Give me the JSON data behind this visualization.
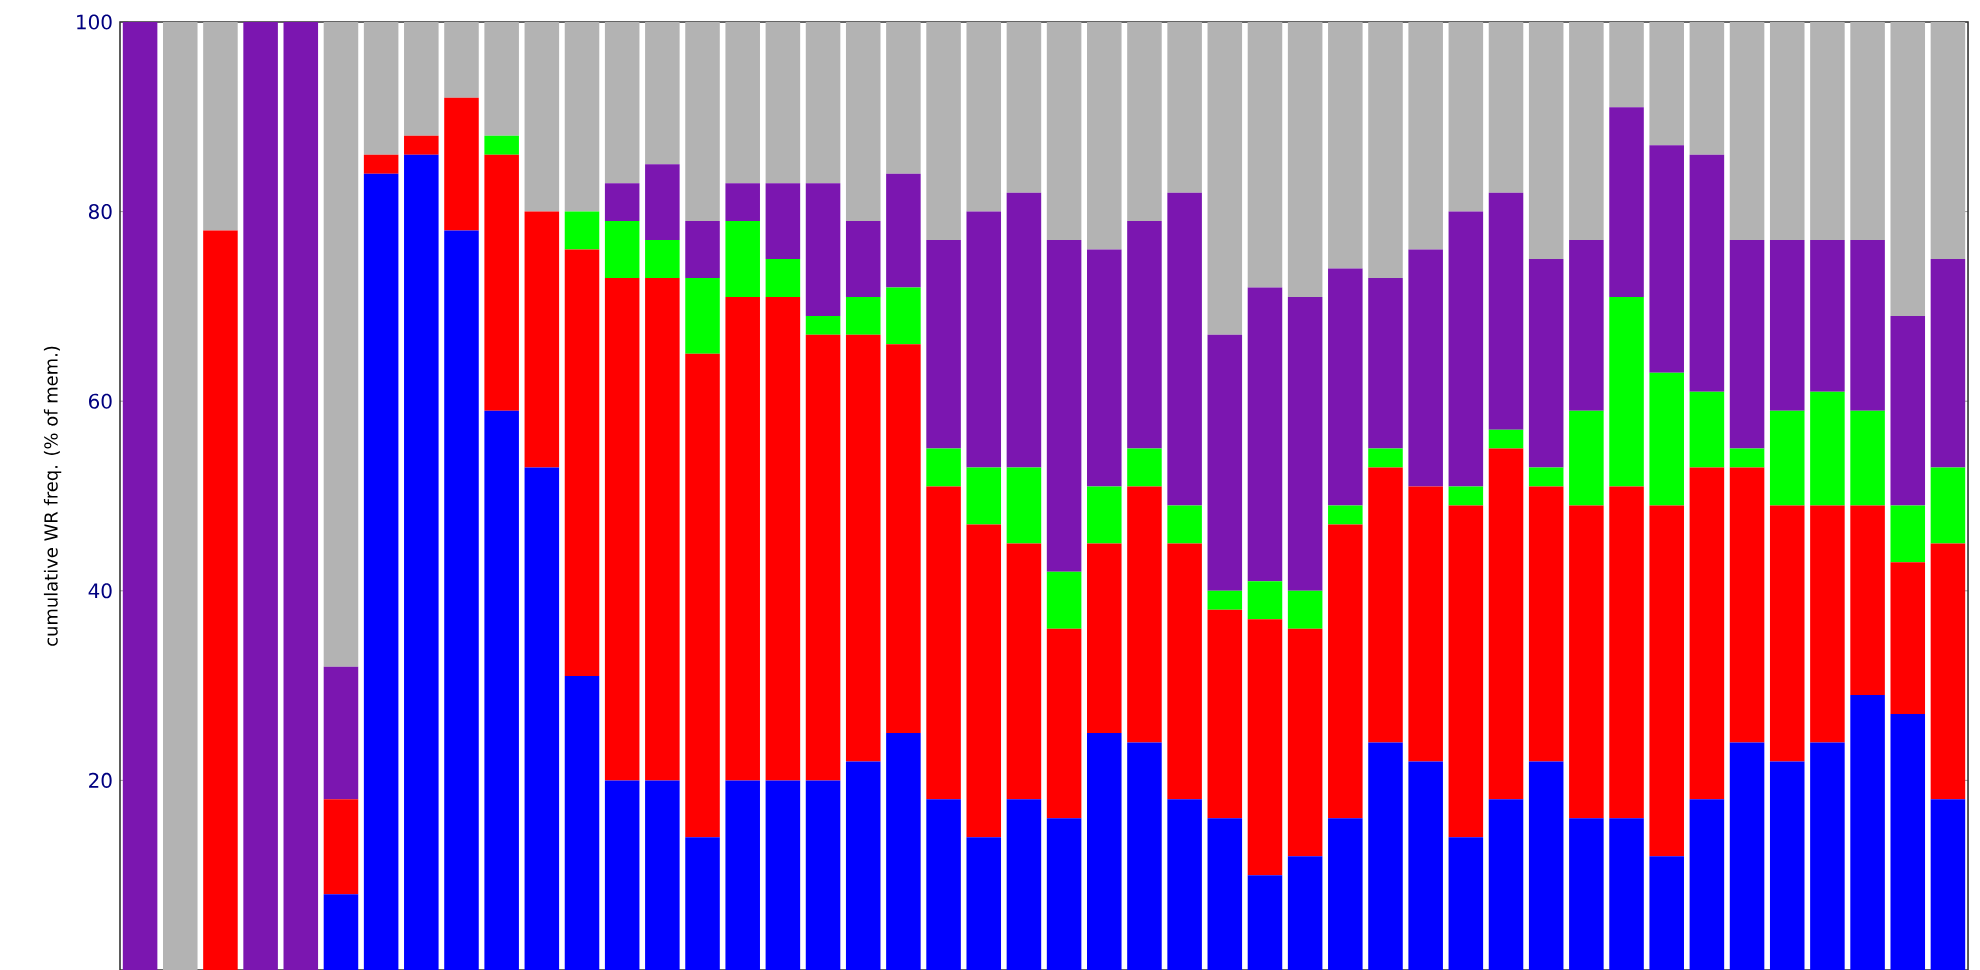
{
  "chart_data": {
    "type": "bar",
    "stacked": true,
    "ylabel": "cumulative WR freq. (% of mem.)",
    "categories": [
      null,
      null,
      null,
      null,
      null,
      null,
      null,
      null,
      null,
      null,
      null,
      null,
      null,
      null,
      null,
      null,
      null,
      null,
      null,
      null,
      null,
      null,
      null,
      null,
      null,
      null,
      null,
      null,
      null,
      null,
      null,
      null,
      null,
      null,
      null,
      null,
      null,
      null,
      null,
      null,
      null,
      null,
      null,
      null,
      null,
      null
    ],
    "series": [
      {
        "color": "#0000ff",
        "values": [
          0,
          0,
          0,
          0,
          0,
          8,
          84,
          86,
          78,
          59,
          53,
          31,
          20,
          20,
          14,
          20,
          20,
          20,
          22,
          25,
          18,
          14,
          18,
          16,
          25,
          24,
          18,
          16,
          10,
          12,
          16,
          24,
          22,
          14,
          18,
          22,
          16,
          16,
          12,
          18,
          24,
          22,
          24,
          29,
          27,
          18
        ]
      },
      {
        "color": "#ff0000",
        "values": [
          0,
          0,
          78,
          0,
          0,
          10,
          2,
          2,
          14,
          27,
          27,
          45,
          53,
          53,
          51,
          51,
          51,
          47,
          45,
          41,
          33,
          33,
          27,
          20,
          20,
          27,
          27,
          22,
          27,
          24,
          31,
          29,
          29,
          35,
          37,
          29,
          33,
          35,
          37,
          35,
          29,
          27,
          25,
          20,
          16,
          27
        ]
      },
      {
        "color": "#00ff00",
        "values": [
          0,
          0,
          0,
          0,
          0,
          0,
          0,
          0,
          0,
          2,
          0,
          4,
          6,
          4,
          8,
          8,
          4,
          2,
          4,
          6,
          4,
          6,
          8,
          6,
          6,
          4,
          4,
          2,
          4,
          4,
          2,
          2,
          0,
          2,
          2,
          2,
          10,
          20,
          14,
          8,
          2,
          10,
          12,
          10,
          6,
          8
        ]
      },
      {
        "color": "#7b16b0",
        "values": [
          100,
          0,
          0,
          100,
          100,
          14,
          0,
          0,
          0,
          0,
          0,
          0,
          4,
          8,
          6,
          4,
          8,
          14,
          8,
          12,
          22,
          27,
          29,
          35,
          25,
          24,
          33,
          27,
          31,
          31,
          25,
          18,
          25,
          29,
          25,
          22,
          18,
          20,
          24,
          25,
          22,
          18,
          16,
          18,
          20,
          22
        ]
      },
      {
        "color": "#b3b3b3",
        "values": [
          0,
          100,
          22,
          0,
          0,
          68,
          14,
          12,
          8,
          12,
          20,
          20,
          17,
          15,
          21,
          17,
          17,
          17,
          21,
          16,
          23,
          20,
          18,
          23,
          24,
          21,
          18,
          33,
          28,
          29,
          26,
          27,
          24,
          20,
          18,
          25,
          23,
          9,
          13,
          14,
          23,
          23,
          23,
          23,
          31,
          25
        ]
      }
    ],
    "ylim": [
      0,
      100
    ],
    "yticks": [
      20,
      40,
      60,
      80,
      100
    ],
    "tick_labels": "y"
  }
}
